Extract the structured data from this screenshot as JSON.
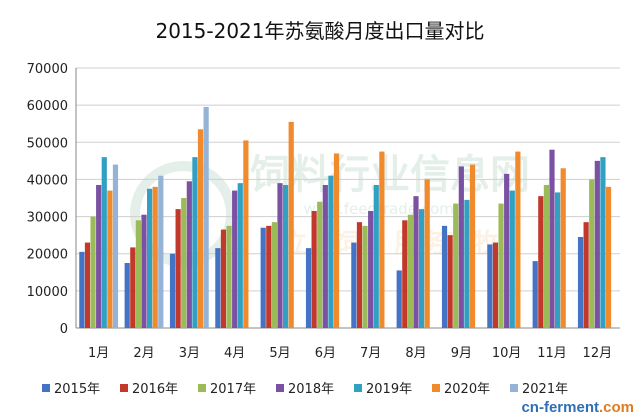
{
  "chart_data": {
    "type": "bar",
    "title": "2015-2021年苏氨酸月度出口量对比",
    "xlabel": "",
    "ylabel": "",
    "ylim": [
      0,
      70000
    ],
    "yticks": [
      0,
      10000,
      20000,
      30000,
      40000,
      50000,
      60000,
      70000
    ],
    "grid": true,
    "legend_position": "bottom",
    "categories": [
      "1月",
      "2月",
      "3月",
      "4月",
      "5月",
      "6月",
      "7月",
      "8月",
      "9月",
      "10月",
      "11月",
      "12月"
    ],
    "series": [
      {
        "name": "2015年",
        "color": "#4472c4",
        "values": [
          20500,
          17500,
          20000,
          21500,
          27000,
          21500,
          23000,
          15500,
          27500,
          22500,
          18000,
          24500
        ]
      },
      {
        "name": "2016年",
        "color": "#c0392b",
        "values": [
          23000,
          21700,
          32000,
          26500,
          27500,
          31500,
          28500,
          29000,
          25000,
          23000,
          35500,
          28500
        ]
      },
      {
        "name": "2017年",
        "color": "#9bbb59",
        "values": [
          30000,
          29000,
          35000,
          27500,
          28500,
          34000,
          27500,
          30500,
          33500,
          33500,
          38500,
          40000
        ]
      },
      {
        "name": "2018年",
        "color": "#7b52a3",
        "values": [
          38500,
          30500,
          39500,
          37000,
          39000,
          38500,
          31500,
          35500,
          43500,
          41500,
          48000,
          45000
        ]
      },
      {
        "name": "2019年",
        "color": "#31a0c3",
        "values": [
          46000,
          37500,
          46000,
          39000,
          38500,
          41000,
          38500,
          32000,
          34500,
          37000,
          36500,
          46000
        ]
      },
      {
        "name": "2020年",
        "color": "#f08a2c",
        "values": [
          37000,
          38000,
          53500,
          50500,
          55500,
          47000,
          47500,
          40000,
          44000,
          47500,
          43000,
          38000
        ]
      },
      {
        "name": "2021年",
        "color": "#95b3d7",
        "values": [
          44000,
          41000,
          59500,
          null,
          null,
          null,
          null,
          null,
          null,
          null,
          null,
          null
        ]
      }
    ]
  },
  "watermark": {
    "text_cn": "饲料行业信息网",
    "text_url": "www.feedtrade.com.cn",
    "slogan": "立足饲料 服务畜牧"
  },
  "footer": {
    "logo_main": "cn-ferment",
    "logo_suffix": ".com"
  }
}
